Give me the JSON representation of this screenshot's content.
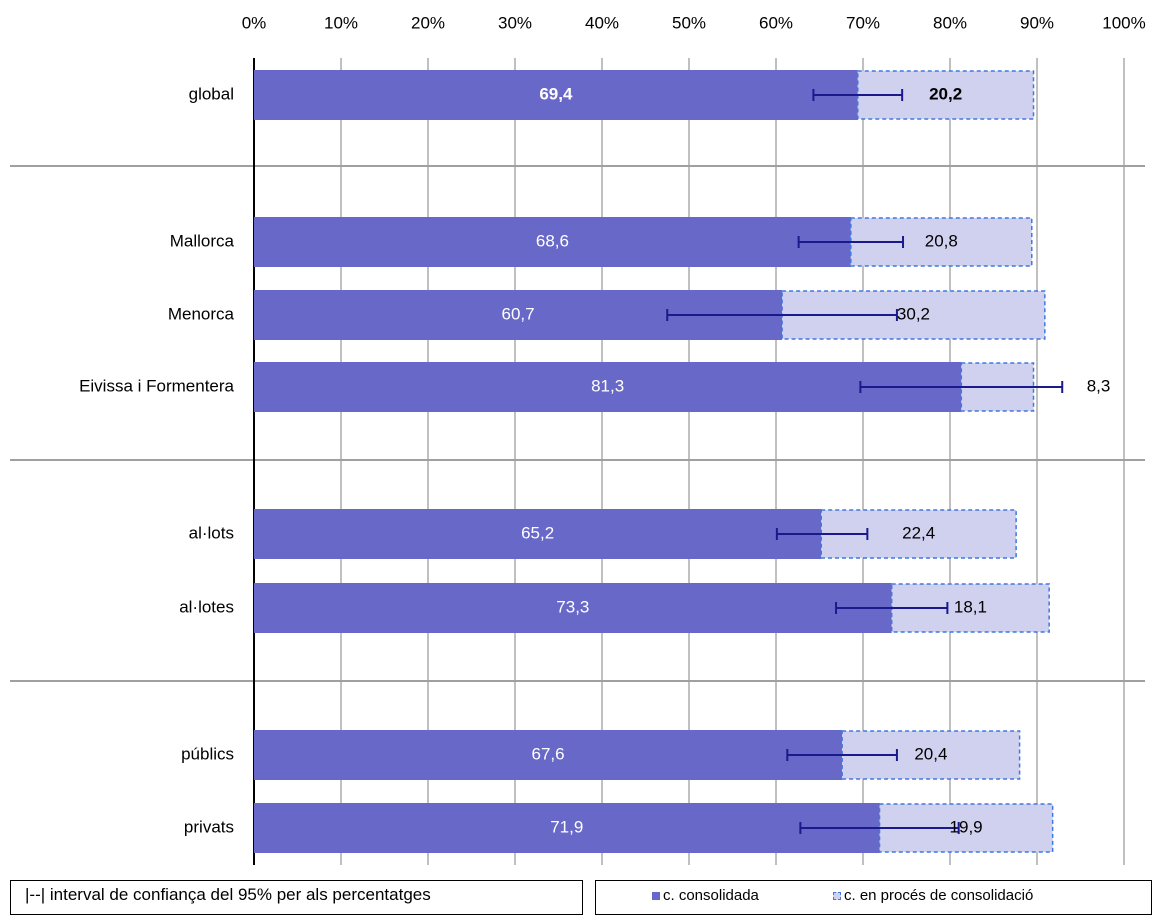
{
  "chart_data": {
    "type": "bar",
    "orientation": "horizontal",
    "stacked": true,
    "x_ticks": [
      "0%",
      "10%",
      "20%",
      "30%",
      "40%",
      "50%",
      "60%",
      "70%",
      "80%",
      "90%",
      "100%"
    ],
    "xlim": [
      0,
      100
    ],
    "x_axis_position": "top",
    "grid": true,
    "categories": [
      "global",
      "Mallorca",
      "Menorca",
      "Eivissa i Formentera",
      "al·lots",
      "al·lotes",
      "públics",
      "privats"
    ],
    "category_groups": [
      [
        "global"
      ],
      [
        "Mallorca",
        "Menorca",
        "Eivissa i Formentera"
      ],
      [
        "al·lots",
        "al·lotes"
      ],
      [
        "públics",
        "privats"
      ]
    ],
    "series": [
      {
        "name": "c. consolidada",
        "color": "#6868c8",
        "values": [
          69.4,
          68.6,
          60.7,
          81.3,
          65.2,
          73.3,
          67.6,
          71.9
        ],
        "labels": [
          "69,4",
          "68,6",
          "60,7",
          "81,3",
          "65,2",
          "73,3",
          "67,6",
          "71,9"
        ]
      },
      {
        "name": "c. en procés de consolidació",
        "color": "#d0d0ef",
        "border_color": "#3f78e0",
        "border_style": "dashed",
        "values": [
          20.2,
          20.8,
          30.2,
          8.3,
          22.4,
          18.1,
          20.4,
          19.9
        ],
        "labels": [
          "20,2",
          "20,8",
          "30,2",
          "8,3",
          "22,4",
          "18,1",
          "20,4",
          "19,9"
        ]
      }
    ],
    "error_bars": {
      "color": "#1a1a8c",
      "ranges": [
        [
          64.3,
          74.5
        ],
        [
          62.6,
          74.6
        ],
        [
          47.5,
          73.9
        ],
        [
          69.7,
          92.9
        ],
        [
          60.1,
          70.5
        ],
        [
          66.9,
          79.7
        ],
        [
          61.3,
          73.9
        ],
        [
          62.8,
          81.0
        ]
      ]
    },
    "bold_categories": [
      "global"
    ]
  },
  "legend": {
    "ci_note": "|--|  interval de confiança del 95% per als percentatges",
    "series_1": "c. consolidada",
    "series_2": "c. en procés de consolidació"
  }
}
